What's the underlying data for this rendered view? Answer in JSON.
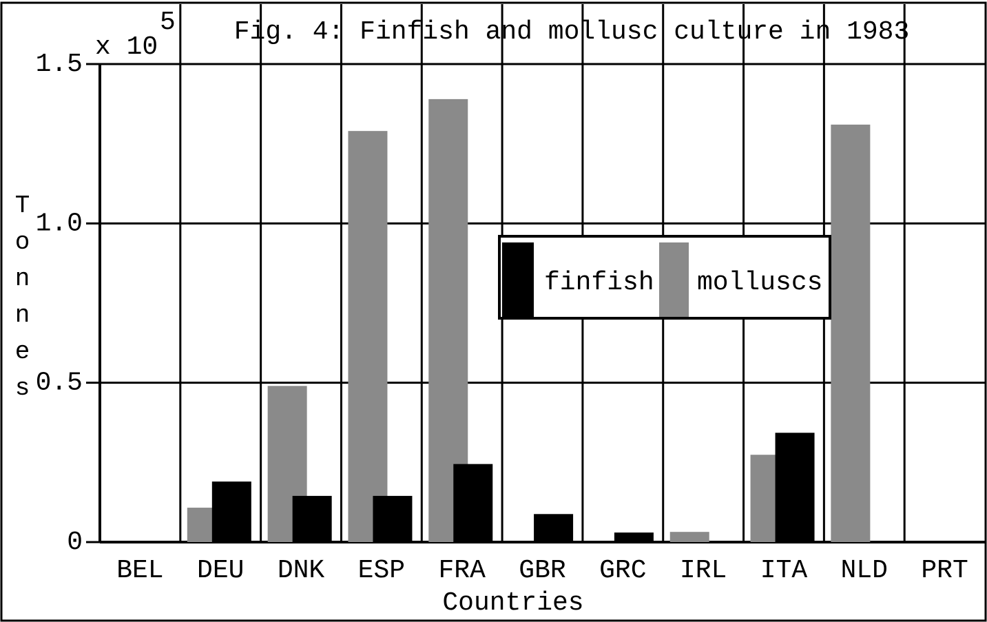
{
  "chart_data": {
    "type": "bar",
    "title": "Fig. 4:  Finfish and mollusc culture in 1983",
    "y_multiplier": "x 10",
    "y_multiplier_exponent": "5",
    "ylabel": "Tonnes",
    "xlabel": "Countries",
    "categories": [
      "BEL",
      "DEU",
      "DNK",
      "ESP",
      "FRA",
      "GBR",
      "GRC",
      "IRL",
      "ITA",
      "NLD",
      "PRT"
    ],
    "series": [
      {
        "name": "molluscs",
        "color": "#8a8a8a",
        "values": [
          0,
          0.108,
          0.49,
          1.29,
          1.39,
          0,
          0,
          0.032,
          0.274,
          1.31,
          0
        ]
      },
      {
        "name": "finfish",
        "color": "#000000",
        "values": [
          0,
          0.19,
          0.145,
          0.145,
          0.245,
          0.088,
          0.03,
          0,
          0.343,
          0,
          0
        ]
      }
    ],
    "ylim": [
      0,
      1.5
    ],
    "yticks": [
      0,
      0.5,
      {
        "value": 1,
        "label": "1.0"
      },
      1.5
    ],
    "grid": true,
    "legend": "center"
  }
}
